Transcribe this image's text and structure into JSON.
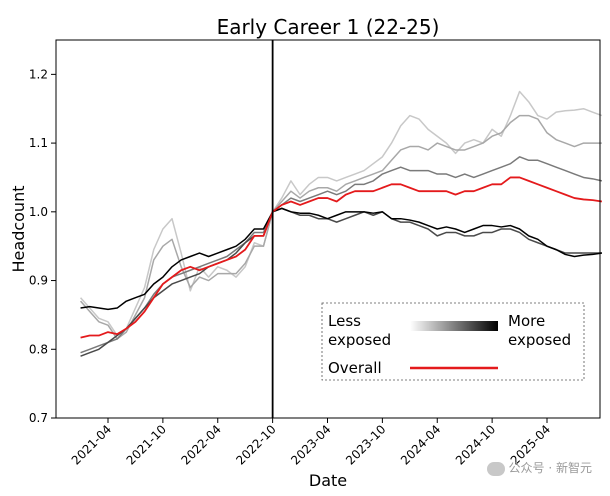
{
  "chart_data": {
    "type": "line",
    "title": "Early Career 1 (22-25)",
    "xlabel": "Date",
    "ylabel": "Headcount",
    "ylim": [
      0.7,
      1.25
    ],
    "yticks": [
      "0.7",
      "0.8",
      "0.9",
      "1.0",
      "1.1",
      "1.2"
    ],
    "xtick_labels": [
      "2021-04",
      "2021-10",
      "2022-04",
      "2022-10",
      "2023-04",
      "2023-10",
      "2024-04",
      "2024-10",
      "2025-04"
    ],
    "x_start": "2021-01",
    "reference_line": "2022-10",
    "legend": {
      "placement": "lower-right",
      "less_label": "Less\nexposed",
      "more_label": "More\nexposed",
      "overall_label": "Overall"
    },
    "colors": {
      "overall": "#e41a1c",
      "q1": "#c8c8c8",
      "q2": "#a8a8a8",
      "q3": "#7a7a7a",
      "q4": "#4a4a4a",
      "q5": "#000000"
    },
    "series": [
      {
        "name": "q1",
        "color": "#c8c8c8",
        "values": [
          0.875,
          0.86,
          0.845,
          0.84,
          0.82,
          0.83,
          0.86,
          0.89,
          0.945,
          0.975,
          0.99,
          0.94,
          0.885,
          0.92,
          0.905,
          0.92,
          0.915,
          0.905,
          0.92,
          0.955,
          0.95,
          1.0,
          1.02,
          1.045,
          1.025,
          1.04,
          1.05,
          1.05,
          1.045,
          1.05,
          1.055,
          1.06,
          1.07,
          1.08,
          1.1,
          1.125,
          1.14,
          1.135,
          1.12,
          1.11,
          1.1,
          1.085,
          1.1,
          1.105,
          1.1,
          1.12,
          1.11,
          1.14,
          1.175,
          1.16,
          1.14,
          1.135,
          1.145,
          1.147,
          1.148,
          1.15,
          1.145,
          1.14
        ]
      },
      {
        "name": "q2",
        "color": "#a8a8a8",
        "values": [
          0.87,
          0.855,
          0.84,
          0.835,
          0.815,
          0.825,
          0.85,
          0.875,
          0.93,
          0.95,
          0.96,
          0.92,
          0.89,
          0.905,
          0.9,
          0.91,
          0.91,
          0.91,
          0.925,
          0.95,
          0.95,
          1.0,
          1.015,
          1.03,
          1.02,
          1.03,
          1.035,
          1.035,
          1.03,
          1.04,
          1.045,
          1.05,
          1.055,
          1.06,
          1.075,
          1.09,
          1.095,
          1.095,
          1.09,
          1.1,
          1.095,
          1.09,
          1.09,
          1.095,
          1.1,
          1.11,
          1.115,
          1.13,
          1.14,
          1.14,
          1.135,
          1.115,
          1.105,
          1.1,
          1.095,
          1.1,
          1.1,
          1.1
        ]
      },
      {
        "name": "q3",
        "color": "#7a7a7a",
        "values": [
          0.795,
          0.8,
          0.805,
          0.81,
          0.815,
          0.83,
          0.845,
          0.86,
          0.88,
          0.895,
          0.905,
          0.91,
          0.915,
          0.92,
          0.925,
          0.93,
          0.935,
          0.945,
          0.955,
          0.97,
          0.97,
          1.0,
          1.01,
          1.02,
          1.015,
          1.02,
          1.025,
          1.03,
          1.025,
          1.03,
          1.04,
          1.04,
          1.045,
          1.055,
          1.06,
          1.065,
          1.06,
          1.06,
          1.06,
          1.055,
          1.055,
          1.05,
          1.055,
          1.05,
          1.055,
          1.06,
          1.065,
          1.07,
          1.08,
          1.075,
          1.075,
          1.07,
          1.065,
          1.06,
          1.055,
          1.05,
          1.048,
          1.045
        ]
      },
      {
        "name": "q4",
        "color": "#4a4a4a",
        "values": [
          0.79,
          0.795,
          0.8,
          0.81,
          0.82,
          0.83,
          0.845,
          0.86,
          0.875,
          0.885,
          0.895,
          0.9,
          0.905,
          0.91,
          0.92,
          0.925,
          0.93,
          0.94,
          0.955,
          0.965,
          0.965,
          1.0,
          1.005,
          1.0,
          0.995,
          0.995,
          0.99,
          0.99,
          0.985,
          0.99,
          0.995,
          1.0,
          0.995,
          1.0,
          0.99,
          0.985,
          0.985,
          0.98,
          0.975,
          0.965,
          0.97,
          0.97,
          0.965,
          0.965,
          0.97,
          0.97,
          0.975,
          0.975,
          0.97,
          0.96,
          0.955,
          0.95,
          0.945,
          0.94,
          0.94,
          0.94,
          0.94,
          0.94
        ]
      },
      {
        "name": "q5",
        "color": "#000000",
        "values": [
          0.86,
          0.862,
          0.86,
          0.858,
          0.86,
          0.87,
          0.875,
          0.88,
          0.895,
          0.905,
          0.92,
          0.93,
          0.935,
          0.94,
          0.935,
          0.94,
          0.945,
          0.95,
          0.96,
          0.975,
          0.975,
          1.0,
          1.005,
          1.0,
          0.998,
          0.998,
          0.995,
          0.99,
          0.995,
          1.0,
          1.0,
          1.0,
          0.998,
          1.0,
          0.99,
          0.99,
          0.988,
          0.985,
          0.98,
          0.975,
          0.978,
          0.975,
          0.97,
          0.975,
          0.98,
          0.98,
          0.978,
          0.98,
          0.975,
          0.965,
          0.96,
          0.95,
          0.945,
          0.938,
          0.935,
          0.937,
          0.938,
          0.94
        ]
      },
      {
        "name": "overall",
        "color": "#e41a1c",
        "values": [
          0.817,
          0.82,
          0.82,
          0.825,
          0.822,
          0.83,
          0.84,
          0.855,
          0.875,
          0.895,
          0.905,
          0.915,
          0.92,
          0.915,
          0.92,
          0.925,
          0.93,
          0.935,
          0.945,
          0.965,
          0.965,
          1.0,
          1.01,
          1.015,
          1.01,
          1.015,
          1.02,
          1.02,
          1.015,
          1.025,
          1.03,
          1.03,
          1.03,
          1.035,
          1.04,
          1.04,
          1.035,
          1.03,
          1.03,
          1.03,
          1.03,
          1.025,
          1.03,
          1.03,
          1.035,
          1.04,
          1.04,
          1.05,
          1.05,
          1.045,
          1.04,
          1.035,
          1.03,
          1.025,
          1.02,
          1.018,
          1.017,
          1.015
        ]
      }
    ]
  },
  "watermark": "公众号 · 新智元"
}
